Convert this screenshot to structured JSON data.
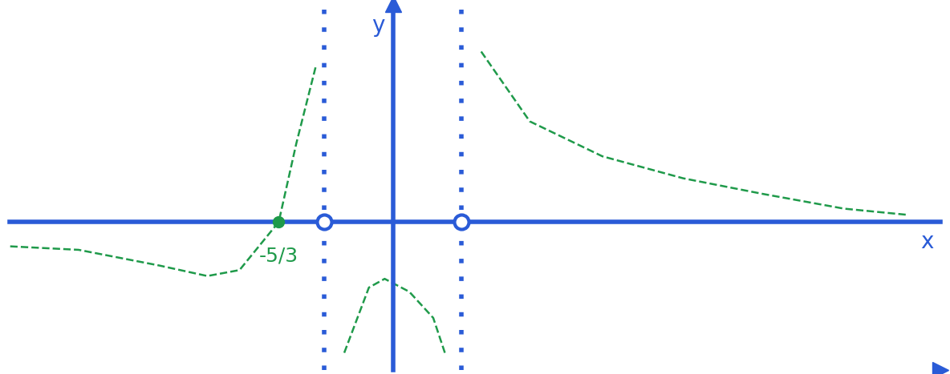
{
  "chart_data": {
    "type": "line",
    "xlabel": "x",
    "ylabel": "y",
    "xlim": [
      -5.6,
      8.0
    ],
    "ylim": [
      -4.25,
      6.25
    ],
    "tick_labels": false,
    "grid": false,
    "color": "#2a5bd7",
    "line_style": "dashed",
    "x": [
      -5.59,
      -4.59,
      -3.41,
      -2.71,
      -2.24,
      -1.667,
      -1.41,
      -1.12,
      -1.0,
      -0.71,
      -0.35,
      -0.12,
      0.24,
      0.59,
      0.76,
      1.0,
      1.29,
      2.0,
      3.06,
      4.24,
      5.41,
      6.59,
      7.53
    ],
    "series": [
      {
        "color": "#1f9a4a",
        "line_style": "dashed",
        "values": [
          -0.7,
          -0.8,
          -1.25,
          -1.55,
          -1.38,
          0,
          2.25,
          4.5,
          null,
          -3.75,
          -1.88,
          -1.63,
          -2.0,
          -2.75,
          -3.75,
          null,
          4.88,
          2.88,
          1.88,
          1.25,
          0.8,
          0.38,
          0.2
        ]
      }
    ],
    "asymptotes": [
      -1,
      1
    ],
    "holes": [
      -1,
      1
    ],
    "zeros": [
      {
        "x": -1.667,
        "y": 0,
        "label": "-5/3",
        "color": "#1f9a4a"
      }
    ]
  }
}
